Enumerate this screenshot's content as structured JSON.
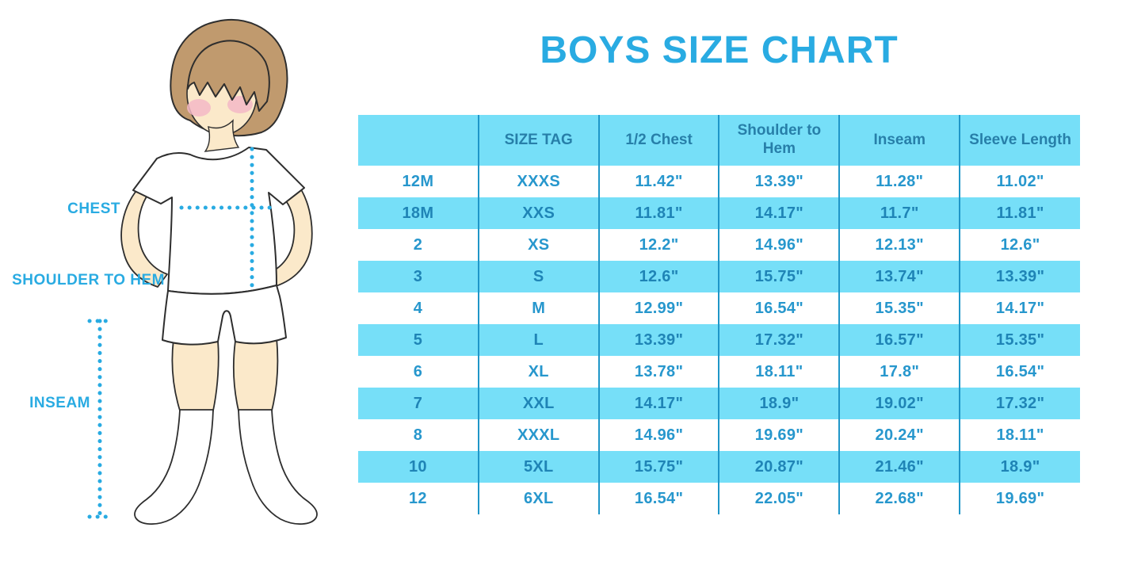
{
  "title": "BOYS SIZE CHART",
  "colors": {
    "accent_blue": "#29ABE2",
    "stripe_cyan": "#76DFF8",
    "divider_blue": "#1F96C8",
    "cell_text_blue": "#2797CD",
    "hair_brown": "#C09A6E",
    "skin_tone": "#FBE9CA",
    "cheek_pink": "#F3B9C7"
  },
  "figure": {
    "labels": {
      "chest": "CHEST",
      "shoulder_to_hem": "SHOULDER TO HEM",
      "inseam": "INSEAM"
    }
  },
  "chart_data": {
    "type": "table",
    "title": "BOYS SIZE CHART",
    "columns": [
      "",
      "SIZE TAG",
      "1/2 Chest",
      "Shoulder to Hem",
      "Inseam",
      "Sleeve Length"
    ],
    "rows": [
      [
        "12M",
        "XXXS",
        "11.42\"",
        "13.39\"",
        "11.28\"",
        "11.02\""
      ],
      [
        "18M",
        "XXS",
        "11.81\"",
        "14.17\"",
        "11.7\"",
        "11.81\""
      ],
      [
        "2",
        "XS",
        "12.2\"",
        "14.96\"",
        "12.13\"",
        "12.6\""
      ],
      [
        "3",
        "S",
        "12.6\"",
        "15.75\"",
        "13.74\"",
        "13.39\""
      ],
      [
        "4",
        "M",
        "12.99\"",
        "16.54\"",
        "15.35\"",
        "14.17\""
      ],
      [
        "5",
        "L",
        "13.39\"",
        "17.32\"",
        "16.57\"",
        "15.35\""
      ],
      [
        "6",
        "XL",
        "13.78\"",
        "18.11\"",
        "17.8\"",
        "16.54\""
      ],
      [
        "7",
        "XXL",
        "14.17\"",
        "18.9\"",
        "19.02\"",
        "17.32\""
      ],
      [
        "8",
        "XXXL",
        "14.96\"",
        "19.69\"",
        "20.24\"",
        "18.11\""
      ],
      [
        "10",
        "5XL",
        "15.75\"",
        "20.87\"",
        "21.46\"",
        "18.9\""
      ],
      [
        "12",
        "6XL",
        "16.54\"",
        "22.05\"",
        "22.68\"",
        "19.69\""
      ]
    ],
    "layout": {
      "stripe_pattern": "header and every second data row highlighted cyan",
      "grid": "vertical dividers only, no outer border"
    }
  }
}
